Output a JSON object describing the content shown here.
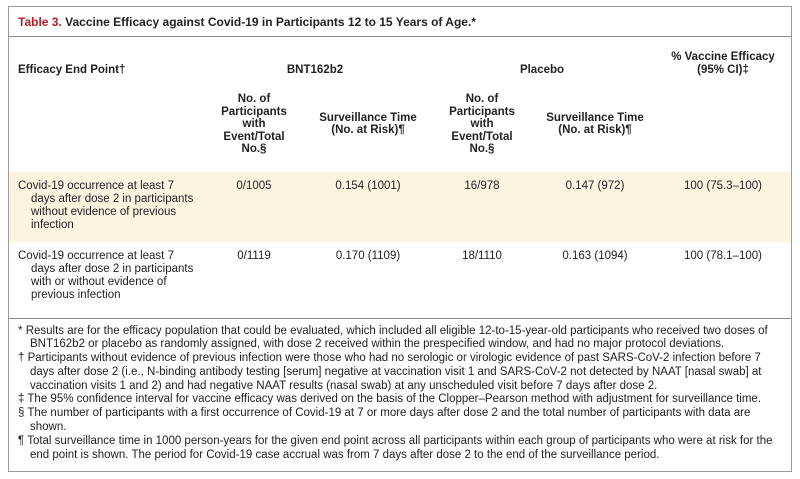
{
  "table": {
    "title": {
      "label": "Table 3.",
      "text": "Vaccine Efficacy against Covid-19 in Participants 12 to 15 Years of Age.*"
    },
    "headers": {
      "endpoint": "Efficacy End Point†",
      "bnt162b2": "BNT162b2",
      "placebo": "Placebo",
      "efficacy": "% Vaccine Efficacy\n(95% CI)‡",
      "events_sub": "No. of Participants with Event/Total No.§",
      "surveillance_sub": "Surveillance Time (No. at Risk)¶"
    },
    "rows": [
      {
        "endpoint": "Covid-19 occurrence at least 7 days after dose 2 in participants without evidence of previous infection",
        "bnt_events": "0/1005",
        "bnt_surveillance": "0.154 (1001)",
        "placebo_events": "16/978",
        "placebo_surveillance": "0.147 (972)",
        "efficacy": "100 (75.3–100)"
      },
      {
        "endpoint": "Covid-19 occurrence at least 7 days after dose 2 in participants with or without evidence of previous infection",
        "bnt_events": "0/1119",
        "bnt_surveillance": "0.170 (1109)",
        "placebo_events": "18/1110",
        "placebo_surveillance": "0.163 (1094)",
        "efficacy": "100 (78.1–100)"
      }
    ]
  },
  "footnotes": [
    {
      "marker": "*",
      "text": "Results are for the efficacy population that could be evaluated, which included all eligible 12-to-15-year-old participants who received two doses of BNT162b2 or placebo as randomly assigned, with dose 2 received within the prespecified window, and had no major protocol deviations."
    },
    {
      "marker": "†",
      "text": "Participants without evidence of previous infection were those who had no serologic or virologic evidence of past SARS-CoV-2 infection before 7 days after dose 2 (i.e., N-binding antibody testing [serum] negative at vaccination visit 1 and SARS-CoV-2 not detected by NAAT [nasal swab] at vaccination visits 1 and 2) and had negative NAAT results (nasal swab) at any unscheduled visit before 7 days after dose 2."
    },
    {
      "marker": "‡",
      "text": "The 95% confidence interval for vaccine efficacy was derived on the basis of the Clopper–Pearson method with adjustment for surveillance time."
    },
    {
      "marker": "§",
      "text": "The number of participants with a first occurrence of Covid-19 at 7 or more days after dose 2 and the total number of participants with data are shown."
    },
    {
      "marker": "¶",
      "text": "Total surveillance time in 1000 person-years for the given end point across all participants within each group of participants who were at risk for the end point is shown. The period for Covid-19 case accrual was from 7 days after dose 2 to the end of the surveillance period."
    }
  ],
  "colors": {
    "accent_red": "#b41f24",
    "row_shade": "#fcf3e1",
    "border_gray": "#8a8a8a"
  }
}
